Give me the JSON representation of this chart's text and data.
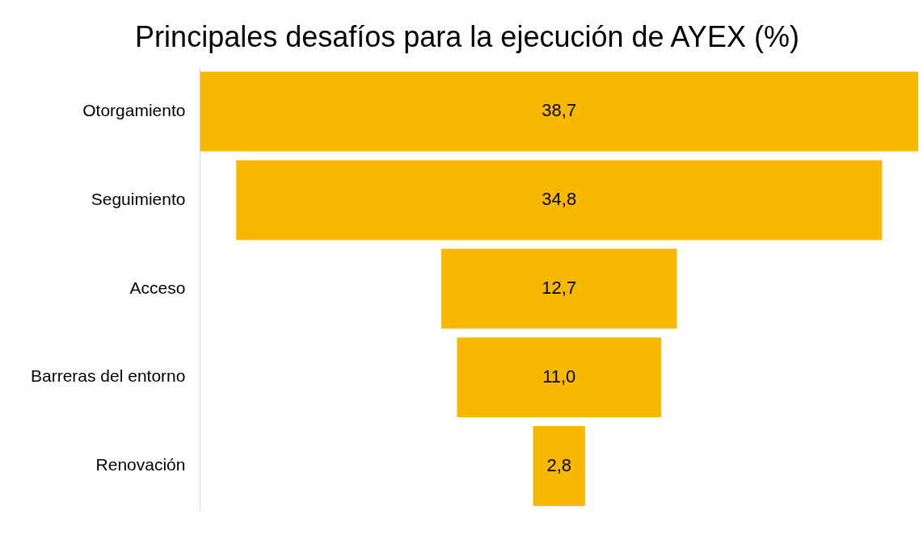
{
  "chart_data": {
    "type": "other",
    "title": "Principales desafíos para la ejecución de AYEX (%)",
    "categories": [
      "Otorgamiento",
      "Seguimiento",
      "Acceso",
      "Barreras del entorno",
      "Renovación"
    ],
    "values": [
      38.7,
      34.8,
      12.7,
      11.0,
      2.8
    ],
    "value_labels": [
      "38,7",
      "34,8",
      "12,7",
      "11,0",
      "2,8"
    ],
    "color": "#f9b800"
  }
}
